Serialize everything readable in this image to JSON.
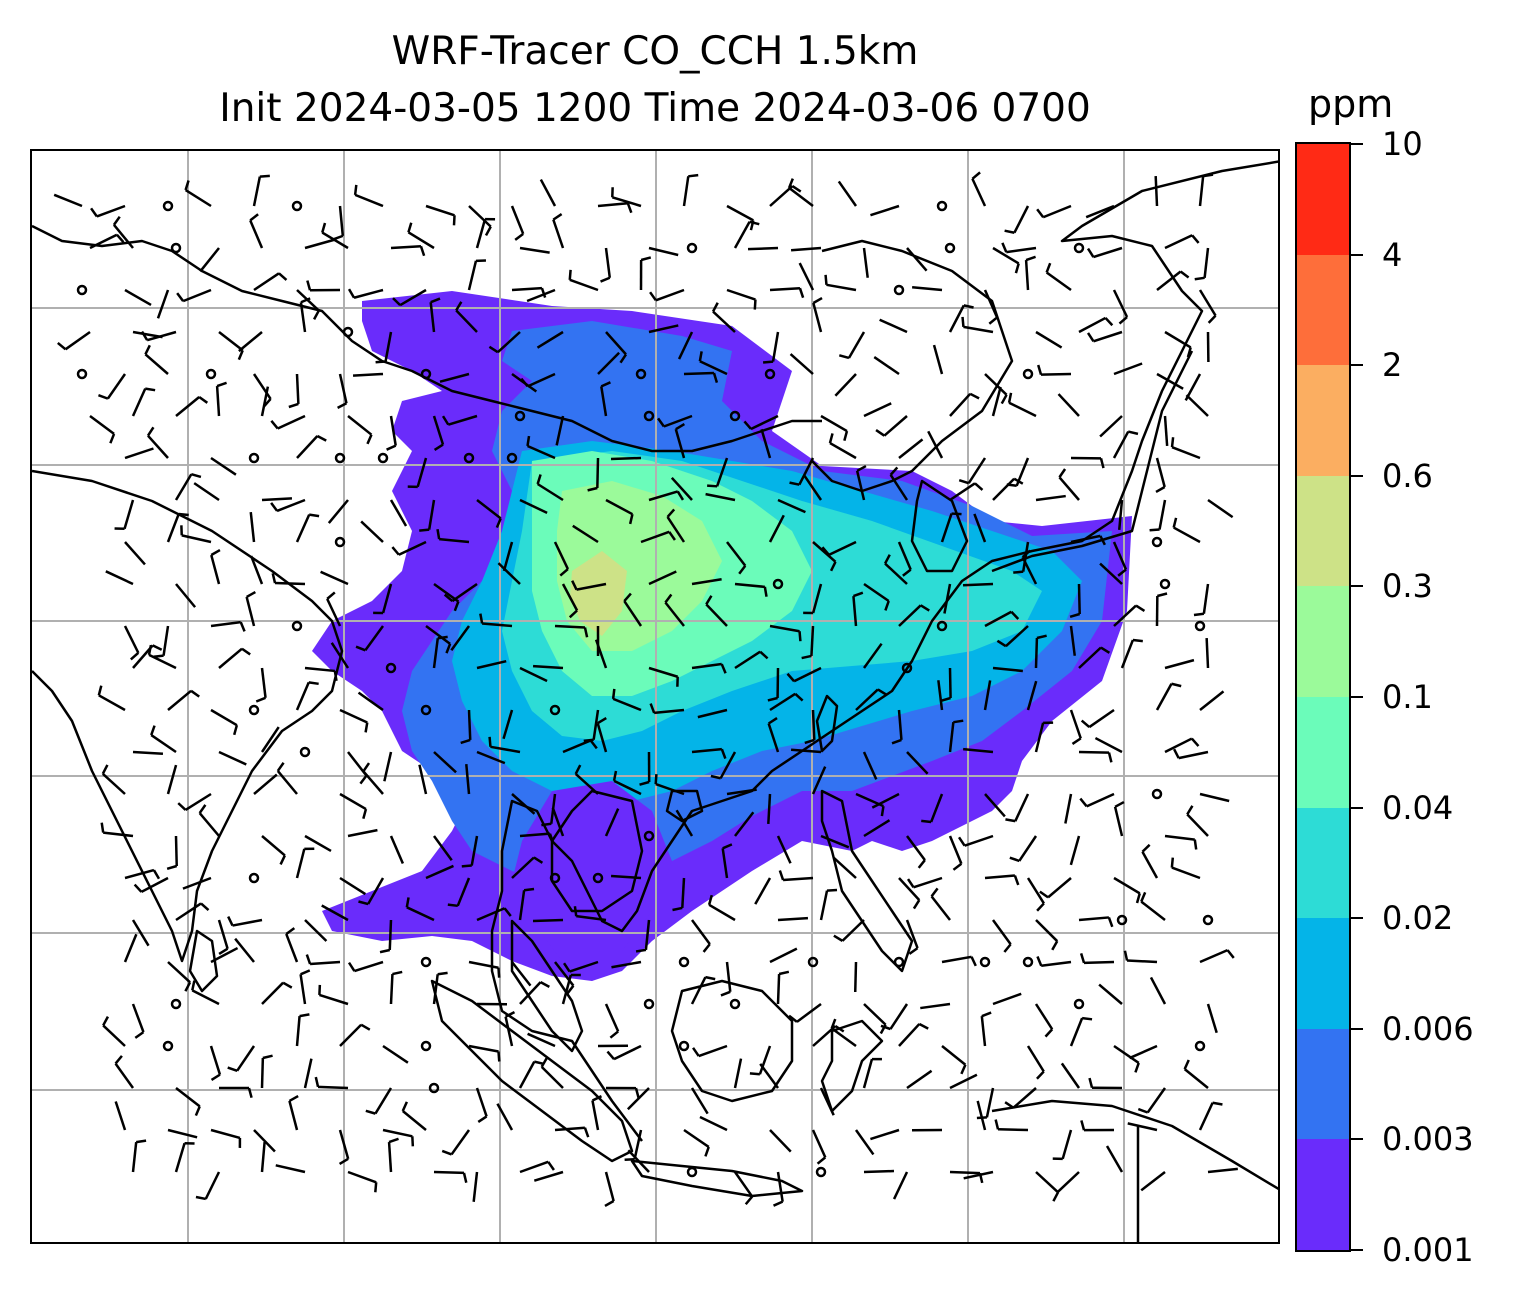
{
  "title": {
    "line1": "WRF-Tracer CO_CCH 1.5km",
    "line2": "Init 2024-03-05 1200 Time 2024-03-06 0700"
  },
  "colorbar": {
    "unit": "ppm",
    "levels": [
      "0.001",
      "0.003",
      "0.006",
      "0.02",
      "0.04",
      "0.1",
      "0.3",
      "0.6",
      "2",
      "4",
      "10"
    ],
    "colors": [
      "#6a2cfb",
      "#3373f2",
      "#04b4e8",
      "#2ddcd6",
      "#6bfcba",
      "#9bfa9a",
      "#cde287",
      "#fbae61",
      "#fe6e3a",
      "#ff2a15"
    ]
  },
  "map": {
    "background": "#ffffff",
    "gridline_color": "#b0b0b0",
    "coastline_color": "#000000",
    "wind_symbol_color": "#000000"
  }
}
